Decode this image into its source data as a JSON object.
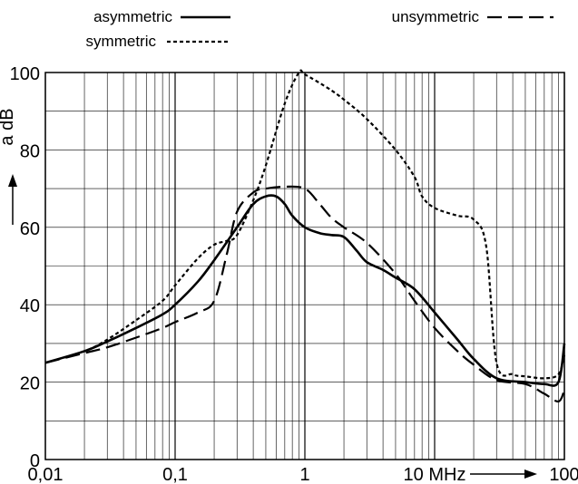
{
  "chart_data": {
    "type": "line",
    "x_scale": "log",
    "xlim": [
      0.01,
      100
    ],
    "ylim": [
      0,
      100
    ],
    "y_ticks": [
      0,
      20,
      40,
      60,
      80,
      100
    ],
    "x_tick_labels": [
      {
        "x": 0.01,
        "label": "0,01"
      },
      {
        "x": 0.1,
        "label": "0,1"
      },
      {
        "x": 1,
        "label": "1"
      },
      {
        "x": 10,
        "label": "10 MHz"
      },
      {
        "x": 100,
        "label": "100"
      }
    ],
    "ylabel": "a dB",
    "grid": true,
    "legend_position": "top",
    "series": [
      {
        "name": "asymmetric",
        "style": "solid",
        "x": [
          0.01,
          0.02,
          0.03,
          0.05,
          0.08,
          0.1,
          0.15,
          0.2,
          0.3,
          0.4,
          0.5,
          0.6,
          0.7,
          0.8,
          1.0,
          1.3,
          1.6,
          2.0,
          2.5,
          3.0,
          4.0,
          5.0,
          7.0,
          10,
          15,
          20,
          30,
          50,
          70,
          90,
          100
        ],
        "y": [
          25,
          28,
          30.5,
          34,
          37.5,
          40,
          46,
          51.5,
          60,
          66,
          68,
          68,
          66,
          63,
          60,
          58.5,
          58,
          57.5,
          54,
          51,
          49,
          47,
          44,
          38,
          31,
          26,
          21,
          20,
          19.5,
          20,
          30
        ]
      },
      {
        "name": "symmetric",
        "style": "dotted",
        "x": [
          0.01,
          0.02,
          0.03,
          0.05,
          0.08,
          0.1,
          0.15,
          0.2,
          0.25,
          0.3,
          0.4,
          0.5,
          0.7,
          0.9,
          1.0,
          1.5,
          2.0,
          3.0,
          5.0,
          7.0,
          8.0,
          10,
          15,
          20,
          25,
          30,
          40,
          50,
          70,
          90,
          100
        ],
        "y": [
          25,
          28,
          31,
          36,
          41,
          45,
          52,
          55.5,
          56.5,
          58,
          67,
          76,
          92,
          100,
          99.5,
          96,
          93,
          88,
          80,
          73,
          68,
          65,
          63,
          62,
          55,
          25,
          22,
          21.5,
          21,
          22,
          27
        ]
      },
      {
        "name": "unsymmetric",
        "style": "dashed",
        "x": [
          0.01,
          0.02,
          0.03,
          0.05,
          0.08,
          0.1,
          0.15,
          0.2,
          0.25,
          0.3,
          0.4,
          0.5,
          0.7,
          1.0,
          1.3,
          1.6,
          2.0,
          3.0,
          5.0,
          7.0,
          10,
          15,
          20,
          30,
          50,
          70,
          90,
          100
        ],
        "y": [
          25,
          27.5,
          29,
          31.5,
          34,
          35.5,
          38,
          41,
          53,
          64,
          69,
          70,
          70.5,
          70,
          66,
          62.5,
          60,
          56,
          48,
          41,
          34,
          28,
          24.5,
          20.5,
          19.5,
          17,
          15,
          18
        ]
      }
    ]
  }
}
